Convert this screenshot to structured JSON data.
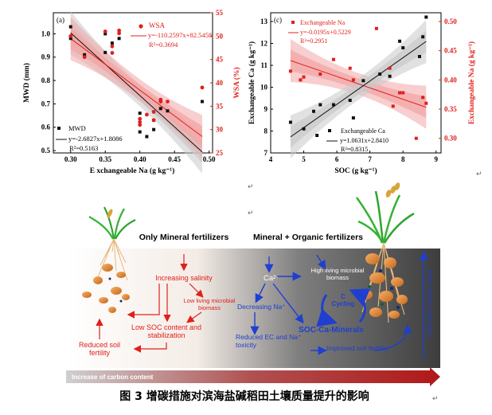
{
  "figure_caption": "图 3 增碳措施对滨海盐碱稻田土壤质量提升的影响",
  "para_mark": "↵",
  "chart_data": [
    {
      "type": "scatter",
      "panel_label": "(a)",
      "xlabel": "E xchangeable Na (g kg⁻¹)",
      "ylabel_left": "MWD (mm)",
      "ylabel_right": "WSA (%)",
      "xlim": [
        0.275,
        0.505
      ],
      "ylim_left": [
        0.49,
        1.09
      ],
      "ylim_right": [
        25,
        55
      ],
      "x_ticks": [
        "0.30",
        "0.35",
        "0.40",
        "0.45",
        "0.50"
      ],
      "x_tick_values": [
        0.3,
        0.35,
        0.4,
        0.45,
        0.5
      ],
      "y_left_ticks": [
        "0.5",
        "0.6",
        "0.7",
        "0.8",
        "0.9",
        "1.0"
      ],
      "y_left_tick_values": [
        0.5,
        0.6,
        0.7,
        0.8,
        0.9,
        1.0
      ],
      "y_right_ticks": [
        "25",
        "30",
        "35",
        "40",
        "45",
        "50",
        "55"
      ],
      "y_right_tick_values": [
        25,
        30,
        35,
        40,
        45,
        50,
        55
      ],
      "series": [
        {
          "name": "MWD",
          "axis": "left",
          "color": "#111111",
          "marker": "square",
          "equation": "y=-2.6827x+1.8086",
          "r2": "R²=0.5163",
          "fit": {
            "slope": -2.6827,
            "intercept": 1.8086
          },
          "points": [
            [
              0.3,
              1.03
            ],
            [
              0.3,
              0.98
            ],
            [
              0.32,
              0.91
            ],
            [
              0.35,
              1.0
            ],
            [
              0.35,
              0.92
            ],
            [
              0.36,
              0.96
            ],
            [
              0.37,
              0.98
            ],
            [
              0.4,
              0.66
            ],
            [
              0.4,
              0.58
            ],
            [
              0.41,
              0.56
            ],
            [
              0.42,
              0.63
            ],
            [
              0.42,
              0.59
            ],
            [
              0.43,
              0.68
            ],
            [
              0.44,
              0.67
            ],
            [
              0.49,
              0.71
            ]
          ]
        },
        {
          "name": "WSA",
          "axis": "right",
          "color": "#e0201b",
          "marker": "circle",
          "equation": "y=-110.2597x+82.5458",
          "r2": "R²=0.3694",
          "fit": {
            "slope": -110.2597,
            "intercept": 82.5458
          },
          "points": [
            [
              0.3,
              50.0
            ],
            [
              0.32,
              45.5
            ],
            [
              0.35,
              51.0
            ],
            [
              0.36,
              47.8
            ],
            [
              0.36,
              46.4
            ],
            [
              0.37,
              51.2
            ],
            [
              0.37,
              50.6
            ],
            [
              0.4,
              31.0
            ],
            [
              0.4,
              31.6
            ],
            [
              0.41,
              33.2
            ],
            [
              0.42,
              33.8
            ],
            [
              0.42,
              32.0
            ],
            [
              0.43,
              36.0
            ],
            [
              0.44,
              36.0
            ],
            [
              0.49,
              39.0
            ],
            [
              0.4,
              32.3
            ],
            [
              0.43,
              36.4
            ]
          ]
        }
      ]
    },
    {
      "type": "scatter",
      "panel_label": "(c)",
      "xlabel": "SOC (g kg⁻¹)",
      "ylabel_left": "Exchangeable Ca (g kg⁻¹)",
      "ylabel_right": "Exchangeable Na (g kg⁻¹)",
      "xlim": [
        4.0,
        9.15
      ],
      "ylim_left": [
        7,
        13.4
      ],
      "ylim_right": [
        0.275,
        0.515
      ],
      "x_ticks": [
        "4",
        "5",
        "6",
        "7",
        "8",
        "9"
      ],
      "x_tick_values": [
        4,
        5,
        6,
        7,
        8,
        9
      ],
      "y_left_ticks": [
        "7",
        "8",
        "9",
        "10",
        "11",
        "12",
        "13"
      ],
      "y_left_tick_values": [
        7,
        8,
        9,
        10,
        11,
        12,
        13
      ],
      "y_right_ticks": [
        "0.30",
        "0.35",
        "0.40",
        "0.45",
        "0.50"
      ],
      "y_right_tick_values": [
        0.3,
        0.35,
        0.4,
        0.45,
        0.5
      ],
      "series": [
        {
          "name": "Exchangeable Na",
          "axis": "right",
          "color": "#e0201b",
          "marker": "square",
          "equation": "y=-0.0195x+0.5229",
          "r2": "R²=0.2951",
          "fit": {
            "slope": -0.0195,
            "intercept": 0.5229
          },
          "points": [
            [
              4.6,
              0.415
            ],
            [
              4.9,
              0.4
            ],
            [
              5.0,
              0.405
            ],
            [
              5.5,
              0.41
            ],
            [
              5.9,
              0.435
            ],
            [
              6.4,
              0.42
            ],
            [
              6.5,
              0.4
            ],
            [
              7.2,
              0.488
            ],
            [
              7.6,
              0.42
            ],
            [
              7.9,
              0.378
            ],
            [
              8.0,
              0.378
            ],
            [
              8.4,
              0.3
            ],
            [
              8.6,
              0.37
            ],
            [
              8.7,
              0.36
            ],
            [
              7.7,
              0.355
            ]
          ]
        },
        {
          "name": "Exchangeable Ca",
          "axis": "left",
          "color": "#111111",
          "marker": "square",
          "equation": "y=1.0631x+2.8410",
          "r2": "R²=0.8315",
          "fit": {
            "slope": 1.0631,
            "intercept": 2.841
          },
          "points": [
            [
              4.6,
              8.4
            ],
            [
              5.0,
              8.1
            ],
            [
              5.3,
              8.9
            ],
            [
              5.4,
              7.8
            ],
            [
              5.5,
              9.2
            ],
            [
              5.9,
              9.2
            ],
            [
              6.4,
              9.4
            ],
            [
              6.5,
              8.6
            ],
            [
              6.8,
              10.3
            ],
            [
              7.3,
              10.6
            ],
            [
              7.6,
              10.5
            ],
            [
              7.9,
              12.1
            ],
            [
              8.0,
              11.8
            ],
            [
              8.5,
              11.4
            ],
            [
              8.6,
              12.3
            ],
            [
              8.7,
              13.2
            ]
          ]
        }
      ]
    }
  ],
  "diagram": {
    "left_title": "Only Mineral fertilizers",
    "right_title": "Mineral + Organic fertilizers",
    "left_nodes": {
      "increasing_salinity": "Increasing salinity",
      "low_microbial": "Low living microbial biomass",
      "low_soc": "Low SOC content and stabilization",
      "reduced_fertility": "Reduced soil fertility"
    },
    "right_nodes": {
      "ca": "Ca²⁺",
      "high_microbial": "High living microbial biomass",
      "c_cycling": "C Cycling",
      "decreasing_na": "Decreasing Na⁺",
      "soc_ca": "SOC-Ca-Minerals",
      "reduced_ec": "Reduced EC and Na⁺ toxicity",
      "improved_fertility": "Improved soil fertility",
      "litter": "High litter carbon input"
    },
    "bottom_arrow": "Increase of carbon content",
    "colors": {
      "red": "#e0201b",
      "blue": "#1f3fd0",
      "arrow_grad_start": "#c9c9c9",
      "arrow_grad_end": "#b01818"
    }
  }
}
